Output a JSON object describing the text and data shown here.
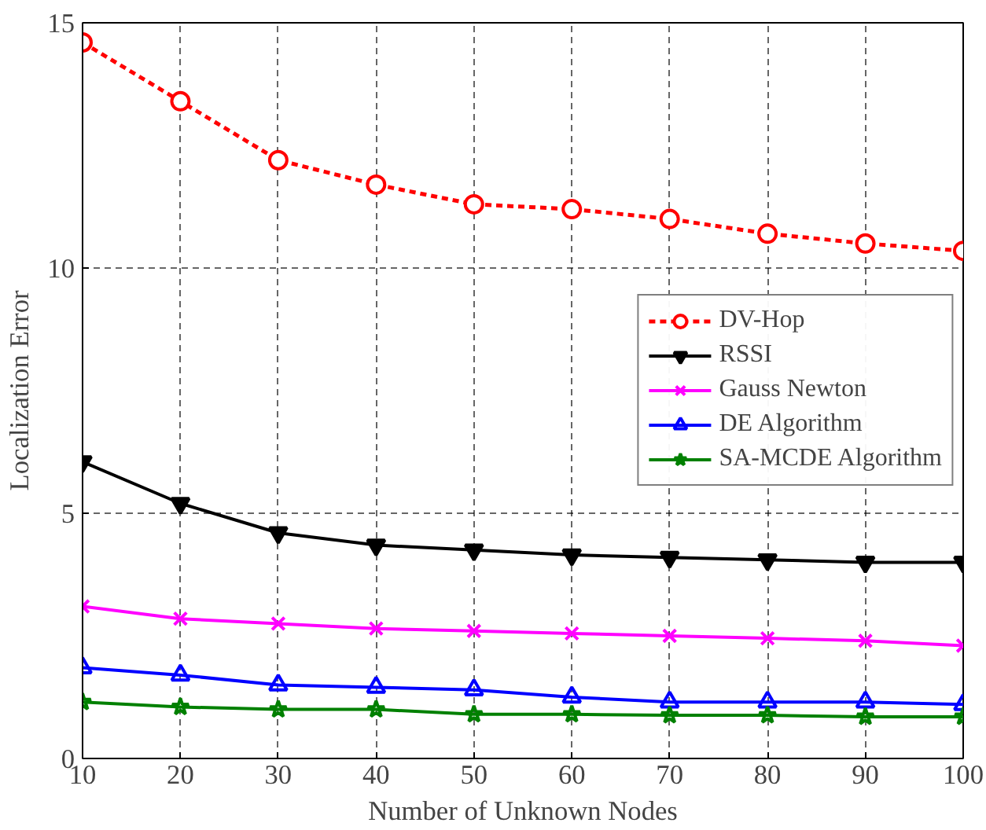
{
  "chart_data": {
    "type": "line",
    "xlabel": "Number of Unknown Nodes",
    "ylabel": "Localization Error",
    "x": [
      10,
      20,
      30,
      40,
      50,
      60,
      70,
      80,
      90,
      100
    ],
    "xlim": [
      10,
      100
    ],
    "xticks": [
      10,
      20,
      30,
      40,
      50,
      60,
      70,
      80,
      90,
      100
    ],
    "ylim": [
      0,
      15
    ],
    "yticks": [
      0,
      5,
      10,
      15
    ],
    "grid": true,
    "legend": "right",
    "series": [
      {
        "name": "DV-Hop",
        "color": "#ff0000",
        "marker": "circle",
        "line_style": "dotted",
        "values": [
          14.6,
          13.4,
          12.2,
          11.7,
          11.3,
          11.2,
          11.0,
          10.7,
          10.5,
          10.35
        ]
      },
      {
        "name": "RSSI",
        "color": "#000000",
        "marker": "triangle_down",
        "line_style": "solid",
        "values": [
          6.05,
          5.2,
          4.6,
          4.35,
          4.25,
          4.15,
          4.1,
          4.05,
          4.0,
          4.0
        ]
      },
      {
        "name": "Gauss Newton",
        "color": "#ff00ff",
        "marker": "cross",
        "line_style": "solid",
        "values": [
          3.1,
          2.85,
          2.75,
          2.65,
          2.6,
          2.55,
          2.5,
          2.45,
          2.4,
          2.3
        ]
      },
      {
        "name": "DE Algorithm",
        "color": "#0000ff",
        "marker": "triangle",
        "line_style": "solid",
        "values": [
          1.85,
          1.7,
          1.5,
          1.45,
          1.4,
          1.25,
          1.15,
          1.15,
          1.15,
          1.1
        ]
      },
      {
        "name": "SA-MCDE Algorithm",
        "color": "#008000",
        "marker": "star",
        "line_style": "solid",
        "values": [
          1.15,
          1.05,
          1.0,
          1.0,
          0.9,
          0.9,
          0.88,
          0.88,
          0.85,
          0.85
        ]
      }
    ]
  }
}
